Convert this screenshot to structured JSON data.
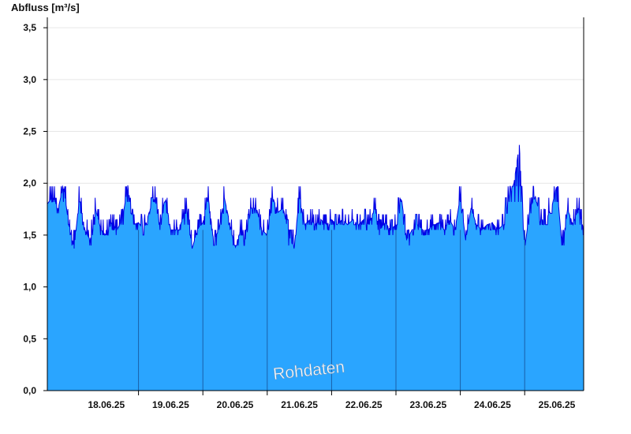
{
  "chart_data": {
    "type": "area",
    "ylabel": "Abfluss [m³/s]",
    "ylim": [
      0,
      3.6
    ],
    "yticks": [
      0.0,
      0.5,
      1.0,
      1.5,
      2.0,
      2.5,
      3.0,
      3.5
    ],
    "ytick_labels": [
      "0,0",
      "0,5",
      "1,0",
      "1,5",
      "2,0",
      "2,5",
      "3,0",
      "3,5"
    ],
    "x_range_days": [
      "17.06.25 14:00",
      "25.06.25 22:00"
    ],
    "xtick_labels": [
      "18.06.25",
      "19.06.25",
      "20.06.25",
      "21.06.25",
      "22.06.25",
      "23.06.25",
      "24.06.25",
      "25.06.25"
    ],
    "day_boundaries": [
      "19.06.25 00:00",
      "20.06.25 00:00",
      "21.06.25 00:00",
      "22.06.25 00:00",
      "23.06.25 00:00",
      "24.06.25 00:00",
      "25.06.25 00:00"
    ],
    "grid": true,
    "watermark": "Rohdaten",
    "series": [
      {
        "color_fill": "#2aa5ff",
        "color_line": "#0000e6",
        "points": [
          [
            "17.06.25 14:00",
            1.8
          ],
          [
            "17.06.25 16:00",
            1.87
          ],
          [
            "17.06.25 18:00",
            1.75
          ],
          [
            "17.06.25 20:00",
            1.98
          ],
          [
            "17.06.25 22:00",
            1.6
          ],
          [
            "18.06.25 00:00",
            1.37
          ],
          [
            "18.06.25 02:00",
            1.87
          ],
          [
            "18.06.25 04:00",
            1.55
          ],
          [
            "18.06.25 06:00",
            1.45
          ],
          [
            "18.06.25 08:00",
            1.75
          ],
          [
            "18.06.25 10:00",
            1.55
          ],
          [
            "18.06.25 12:00",
            1.5
          ],
          [
            "18.06.25 14:00",
            1.62
          ],
          [
            "18.06.25 16:00",
            1.55
          ],
          [
            "18.06.25 18:00",
            1.65
          ],
          [
            "18.06.25 20:00",
            1.98
          ],
          [
            "18.06.25 22:00",
            1.6
          ],
          [
            "19.06.25 00:00",
            1.62
          ],
          [
            "19.06.25 02:00",
            1.55
          ],
          [
            "19.06.25 04:00",
            1.72
          ],
          [
            "19.06.25 06:00",
            1.87
          ],
          [
            "19.06.25 08:00",
            1.6
          ],
          [
            "19.06.25 10:00",
            1.87
          ],
          [
            "19.06.25 12:00",
            1.55
          ],
          [
            "19.06.25 14:00",
            1.55
          ],
          [
            "19.06.25 16:00",
            1.62
          ],
          [
            "19.06.25 18:00",
            1.76
          ],
          [
            "19.06.25 20:00",
            1.37
          ],
          [
            "19.06.25 22:00",
            1.55
          ],
          [
            "20.06.25 00:00",
            1.62
          ],
          [
            "20.06.25 02:00",
            1.87
          ],
          [
            "20.06.25 04:00",
            1.45
          ],
          [
            "20.06.25 06:00",
            1.55
          ],
          [
            "20.06.25 08:00",
            1.86
          ],
          [
            "20.06.25 10:00",
            1.62
          ],
          [
            "20.06.25 12:00",
            1.37
          ],
          [
            "20.06.25 14:00",
            1.55
          ],
          [
            "20.06.25 16:00",
            1.45
          ],
          [
            "20.06.25 18:00",
            1.76
          ],
          [
            "20.06.25 20:00",
            1.76
          ],
          [
            "20.06.25 22:00",
            1.55
          ],
          [
            "21.06.25 00:00",
            1.5
          ],
          [
            "21.06.25 02:00",
            1.87
          ],
          [
            "21.06.25 04:00",
            1.72
          ],
          [
            "21.06.25 06:00",
            1.76
          ],
          [
            "21.06.25 08:00",
            1.5
          ],
          [
            "21.06.25 10:00",
            1.37
          ],
          [
            "21.06.25 12:00",
            1.87
          ],
          [
            "21.06.25 14:00",
            1.6
          ],
          [
            "21.06.25 16:00",
            1.65
          ],
          [
            "21.06.25 18:00",
            1.6
          ],
          [
            "21.06.25 20:00",
            1.65
          ],
          [
            "21.06.25 22:00",
            1.6
          ],
          [
            "22.06.25 00:00",
            1.65
          ],
          [
            "22.06.25 02:00",
            1.6
          ],
          [
            "22.06.25 04:00",
            1.65
          ],
          [
            "22.06.25 06:00",
            1.6
          ],
          [
            "22.06.25 08:00",
            1.65
          ],
          [
            "22.06.25 10:00",
            1.6
          ],
          [
            "22.06.25 12:00",
            1.65
          ],
          [
            "22.06.25 14:00",
            1.6
          ],
          [
            "22.06.25 16:00",
            1.76
          ],
          [
            "22.06.25 18:00",
            1.55
          ],
          [
            "22.06.25 20:00",
            1.62
          ],
          [
            "22.06.25 22:00",
            1.55
          ],
          [
            "23.06.25 00:00",
            1.6
          ],
          [
            "23.06.25 02:00",
            1.87
          ],
          [
            "23.06.25 04:00",
            1.45
          ],
          [
            "23.06.25 06:00",
            1.55
          ],
          [
            "23.06.25 08:00",
            1.6
          ],
          [
            "23.06.25 10:00",
            1.55
          ],
          [
            "23.06.25 12:00",
            1.55
          ],
          [
            "23.06.25 14:00",
            1.6
          ],
          [
            "23.06.25 16:00",
            1.62
          ],
          [
            "23.06.25 18:00",
            1.55
          ],
          [
            "23.06.25 20:00",
            1.65
          ],
          [
            "23.06.25 22:00",
            1.55
          ],
          [
            "24.06.25 00:00",
            1.87
          ],
          [
            "24.06.25 02:00",
            1.45
          ],
          [
            "24.06.25 04:00",
            1.76
          ],
          [
            "24.06.25 06:00",
            1.6
          ],
          [
            "24.06.25 08:00",
            1.55
          ],
          [
            "24.06.25 10:00",
            1.6
          ],
          [
            "24.06.25 12:00",
            1.62
          ],
          [
            "24.06.25 14:00",
            1.55
          ],
          [
            "24.06.25 16:00",
            1.6
          ],
          [
            "24.06.25 18:00",
            1.87
          ],
          [
            "24.06.25 20:00",
            2.0
          ],
          [
            "24.06.25 22:00",
            2.37
          ],
          [
            "25.06.25 00:00",
            1.37
          ],
          [
            "25.06.25 02:00",
            1.76
          ],
          [
            "25.06.25 04:00",
            1.87
          ],
          [
            "25.06.25 06:00",
            1.65
          ],
          [
            "25.06.25 08:00",
            1.65
          ],
          [
            "25.06.25 10:00",
            1.76
          ],
          [
            "25.06.25 12:00",
            1.98
          ],
          [
            "25.06.25 14:00",
            1.37
          ],
          [
            "25.06.25 16:00",
            1.75
          ],
          [
            "25.06.25 18:00",
            1.6
          ],
          [
            "25.06.25 20:00",
            1.76
          ],
          [
            "25.06.25 22:00",
            1.55
          ]
        ]
      }
    ]
  }
}
